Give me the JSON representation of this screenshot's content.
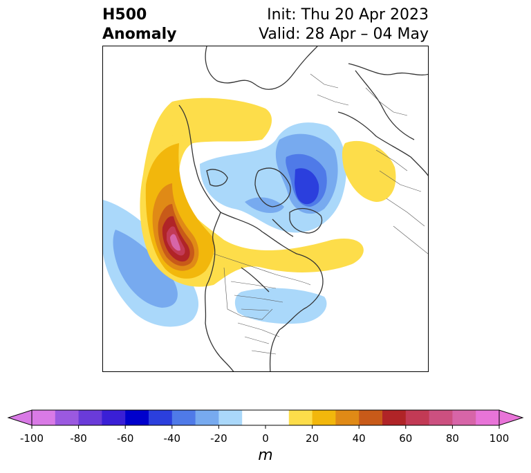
{
  "title": {
    "variable": "H500",
    "type": "Anomaly",
    "init": "Init: Thu 20 Apr 2023",
    "valid": "Valid: 28 Apr – 04 May"
  },
  "colorbar": {
    "unit": "m",
    "ticks": [
      "-100",
      "-80",
      "-60",
      "-40",
      "-20",
      "0",
      "20",
      "40",
      "60",
      "80",
      "100"
    ],
    "levels": [
      -100,
      -90,
      -80,
      -70,
      -60,
      -50,
      -40,
      -30,
      -20,
      -10,
      10,
      20,
      30,
      40,
      50,
      60,
      70,
      80,
      90,
      100
    ],
    "colors": [
      "#d97ae6",
      "#9b59e0",
      "#6a3bd9",
      "#3a1fd6",
      "#0000cc",
      "#2b3fdd",
      "#4f7ae8",
      "#77aaef",
      "#aad8fa",
      "#ffffff",
      "#fddd4a",
      "#f2b70c",
      "#e08a16",
      "#c85a19",
      "#b02427",
      "#c23a55",
      "#cc5080",
      "#d765a8",
      "#e874d8"
    ],
    "extend": "both",
    "under_color": "#d97ae6",
    "over_color": "#e874d8"
  }
}
